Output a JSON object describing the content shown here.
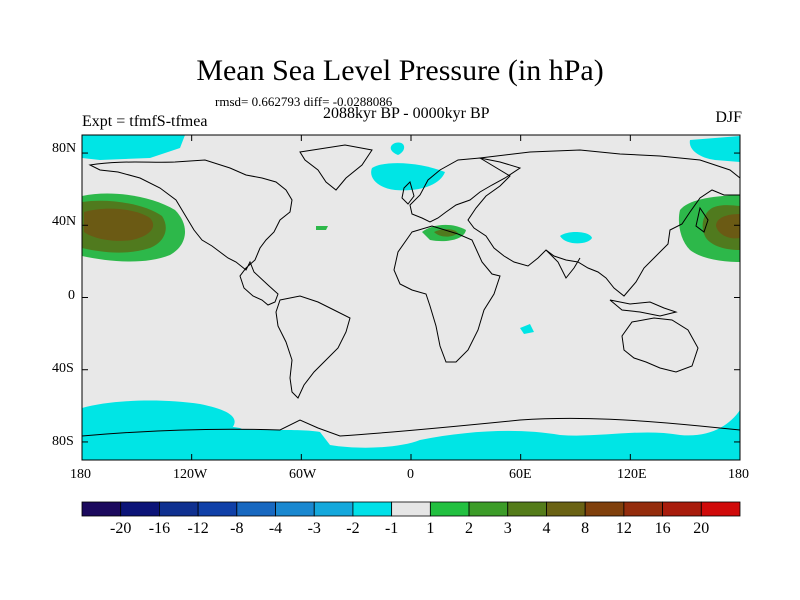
{
  "title": "Mean Sea Level Pressure (in hPa)",
  "stats": "rmsd= 0.662793 diff= -0.0288086",
  "experiment": "Expt = tfmfS-tfmea",
  "period": "2088kyr BP - 0000kyr BP",
  "season": "DJF",
  "colors": {
    "background": "#e8e8e8",
    "coastline": "#000000",
    "cyan": "#00e5e5",
    "green_light": "#2db84a",
    "green_dark": "#507a1e",
    "olive": "#6b5a14"
  },
  "axes": {
    "lat_labels": [
      "80N",
      "40N",
      "0",
      "40S",
      "80S"
    ],
    "lon_labels": [
      "180",
      "120W",
      "60W",
      "0",
      "60E",
      "120E",
      "180"
    ]
  },
  "colorbar": {
    "colors": [
      "#1c0a5e",
      "#0c1478",
      "#0f3090",
      "#1040a8",
      "#1868c0",
      "#1a88d0",
      "#14a8dc",
      "#00e0e8",
      "#e6e6e6",
      "#22c040",
      "#3c9c28",
      "#547c1a",
      "#6a6214",
      "#80400c",
      "#942c0c",
      "#a81c0c",
      "#d00a0a"
    ],
    "labels": [
      "-20",
      "-16",
      "-12",
      "-8",
      "-4",
      "-3",
      "-2",
      "-1",
      "1",
      "2",
      "3",
      "4",
      "8",
      "12",
      "16",
      "20"
    ]
  }
}
